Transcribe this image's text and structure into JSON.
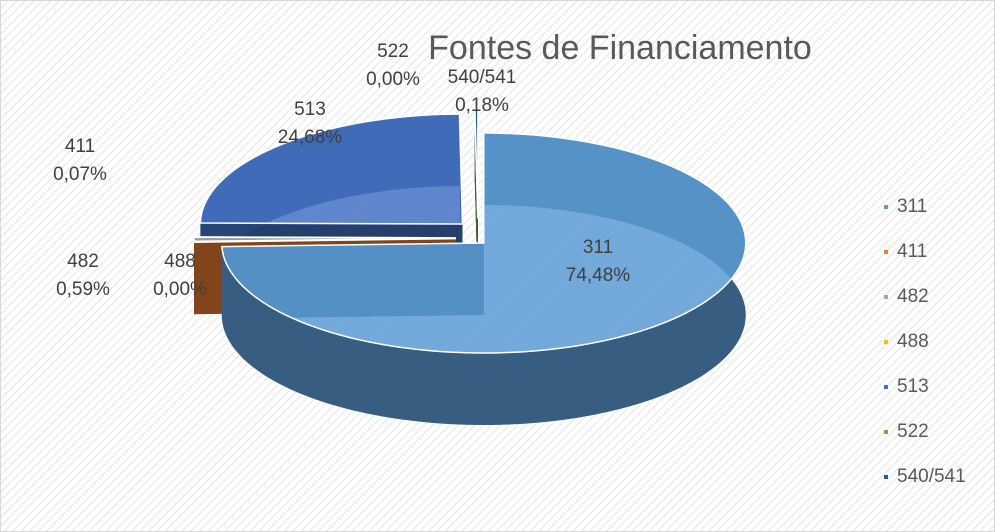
{
  "chart_data": {
    "type": "pie3d",
    "title": "Fontes de Financiamento",
    "categories": [
      "311",
      "411",
      "482",
      "488",
      "513",
      "522",
      "540/541"
    ],
    "values": [
      74.48,
      0.07,
      0.59,
      0.0,
      24.68,
      0.0,
      0.18
    ],
    "value_labels": [
      "74,48%",
      "0,07%",
      "0,59%",
      "0,00%",
      "24,68%",
      "0,00%",
      "0,18%"
    ],
    "colors": [
      "#5b9bd5",
      "#ed7d31",
      "#a5a5a5",
      "#ffc000",
      "#4472c4",
      "#70ad47",
      "#255e91"
    ],
    "legend": "right"
  }
}
